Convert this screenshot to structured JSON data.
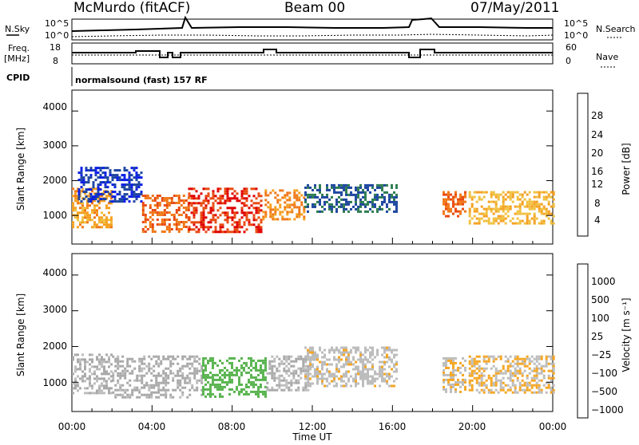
{
  "header": {
    "station": "McMurdo (fitACF)",
    "beam": "Beam 00",
    "date": "07/May/2011"
  },
  "strips": {
    "noise": {
      "left_label": "N.Sky",
      "right_label": "N.Search",
      "ticks_left": [
        "10^5",
        "10^0"
      ],
      "ticks_right": [
        "10^5",
        "10^0"
      ]
    },
    "freq": {
      "left_label_1": "Freq.",
      "left_label_2": "[MHz]",
      "right_label": "Nave",
      "ticks_left": [
        "18",
        "8"
      ],
      "ticks_right": [
        "60",
        "0"
      ]
    },
    "cpid": {
      "left_label": "CPID",
      "program": "normalsound (fast) 157 RF"
    }
  },
  "colors": {
    "power_scale": [
      "#0a1ee6",
      "#1e46a0",
      "#2e7d50",
      "#4daf4a",
      "#c8c800",
      "#f0c040",
      "#f5a020",
      "#f07818",
      "#e84a10",
      "#e00000"
    ],
    "velocity_scale": [
      "#1e3ca0",
      "#2860b0",
      "#2e8b57",
      "#5ab450",
      "#a8a8a8",
      "#bdbdbd",
      "#f5a623",
      "#f07818",
      "#e84a10",
      "#e00000"
    ]
  },
  "chart_data": [
    {
      "type": "heatmap",
      "panel": "power",
      "ylabel": "Slant Range [km]",
      "ylim": [
        180,
        4600
      ],
      "y_ticks": [
        "4000",
        "3000",
        "2000",
        "1000"
      ],
      "colorbar_label": "Power [dB]",
      "colorbar_ticks": [
        "28",
        "24",
        "20",
        "16",
        "12",
        "8",
        "4"
      ],
      "value_range": [
        0,
        30
      ],
      "echo_regions": [
        {
          "t0": 0.0,
          "t1": 2.0,
          "r0": 700,
          "r1": 1800,
          "level": 22
        },
        {
          "t0": 0.3,
          "t1": 3.5,
          "r0": 1400,
          "r1": 2400,
          "level": 6
        },
        {
          "t0": 3.5,
          "t1": 5.8,
          "r0": 550,
          "r1": 1600,
          "level": 26
        },
        {
          "t0": 5.8,
          "t1": 9.5,
          "r0": 550,
          "r1": 1800,
          "level": 29
        },
        {
          "t0": 9.5,
          "t1": 11.6,
          "r0": 900,
          "r1": 1750,
          "level": 24
        },
        {
          "t0": 11.6,
          "t1": 16.2,
          "r0": 1100,
          "r1": 1900,
          "level": 8
        },
        {
          "t0": 18.5,
          "t1": 19.6,
          "r0": 1000,
          "r1": 1700,
          "level": 26
        },
        {
          "t0": 19.8,
          "t1": 24.0,
          "r0": 750,
          "r1": 1700,
          "level": 20
        }
      ]
    },
    {
      "type": "heatmap",
      "panel": "velocity",
      "xlabel": "Time UT",
      "ylabel": "Slant Range [km]",
      "ylim": [
        180,
        4600
      ],
      "y_ticks": [
        "4000",
        "3000",
        "2000",
        "1000"
      ],
      "x_ticks": [
        "00:00",
        "04:00",
        "08:00",
        "12:00",
        "16:00",
        "20:00",
        "00:00"
      ],
      "colorbar_label": "Velocity [m s⁻¹]",
      "colorbar_ticks": [
        "1000",
        "500",
        "100",
        "25",
        "−25",
        "−100",
        "−500",
        "−1000"
      ],
      "value_range": [
        -1000,
        1000
      ],
      "echo_regions": [
        {
          "t0": 0.0,
          "t1": 2.0,
          "r0": 700,
          "r1": 1800,
          "level": 50
        },
        {
          "t0": 2.0,
          "t1": 6.5,
          "r0": 600,
          "r1": 1750,
          "level": 80
        },
        {
          "t0": 6.5,
          "t1": 9.7,
          "r0": 600,
          "r1": 1700,
          "level": 400
        },
        {
          "t0": 9.7,
          "t1": 11.8,
          "r0": 750,
          "r1": 1750,
          "level": 60
        },
        {
          "t0": 11.6,
          "t1": 16.2,
          "r0": 900,
          "r1": 2000,
          "level": -120
        },
        {
          "t0": 18.5,
          "t1": 19.6,
          "r0": 700,
          "r1": 1700,
          "level": -150
        },
        {
          "t0": 19.8,
          "t1": 24.0,
          "r0": 700,
          "r1": 1750,
          "level": -150
        }
      ]
    }
  ]
}
